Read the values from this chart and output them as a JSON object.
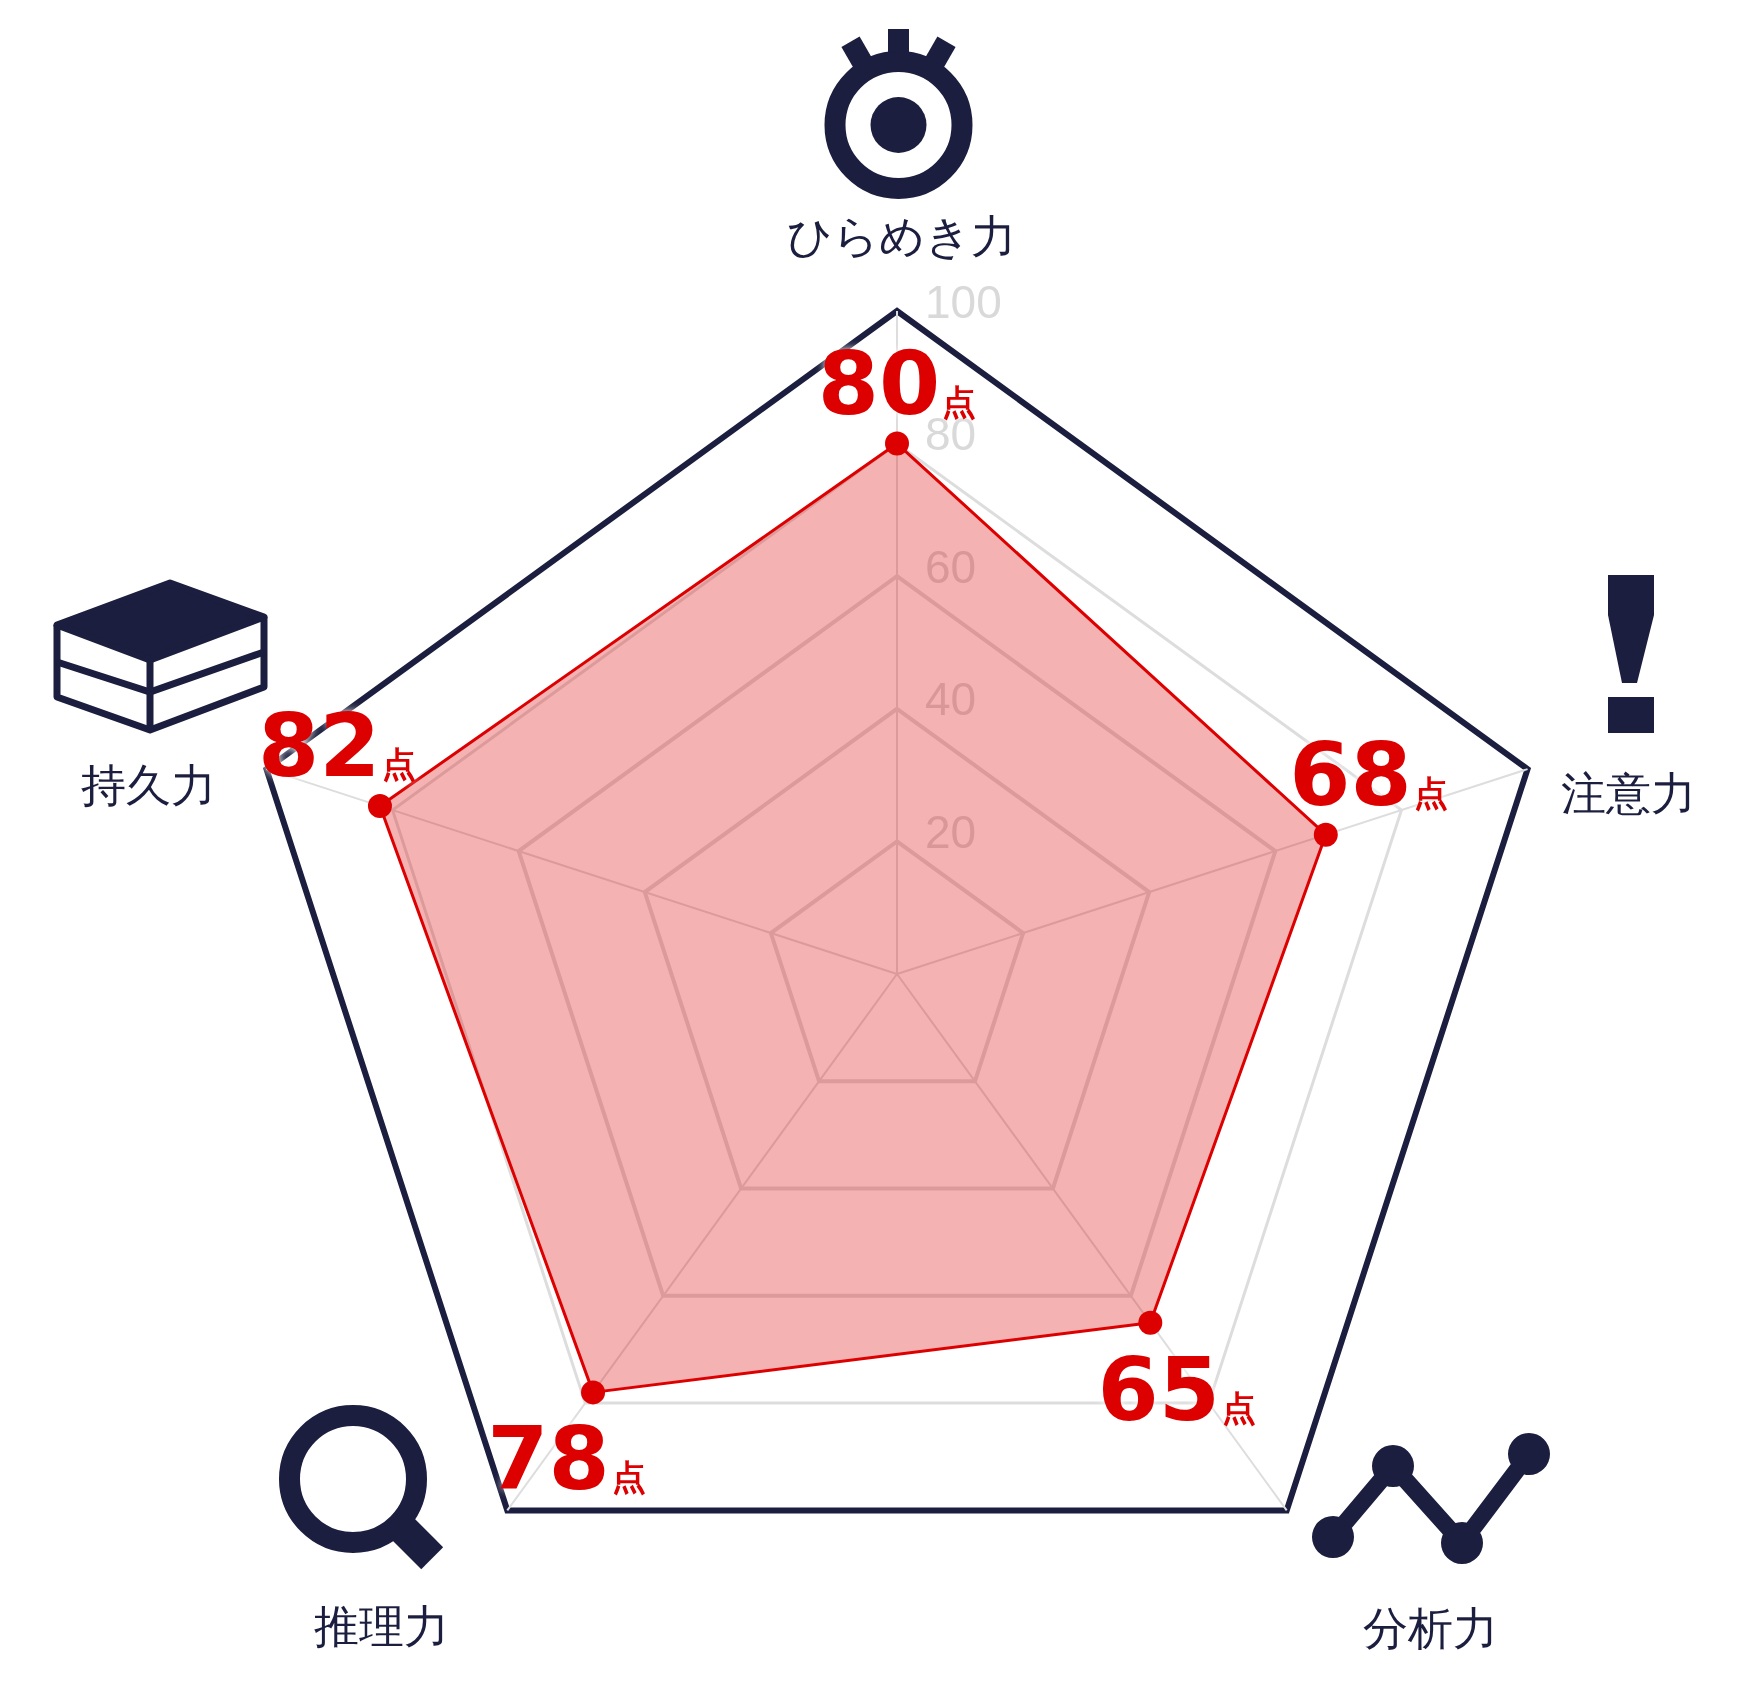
{
  "chart_data": {
    "type": "radar",
    "categories": [
      "ひらめき力",
      "注意力",
      "分析力",
      "推理力",
      "持久力"
    ],
    "series": [
      {
        "color": "#dd0000",
        "values": [
          80,
          68,
          65,
          78,
          82
        ],
        "value_labels": [
          "80点",
          "68点",
          "65点",
          "78点",
          "82点"
        ]
      }
    ],
    "ylim": [
      0,
      100
    ],
    "yticks": [
      20,
      40,
      60,
      80,
      100
    ],
    "grid": true,
    "marker": "circle"
  }
}
